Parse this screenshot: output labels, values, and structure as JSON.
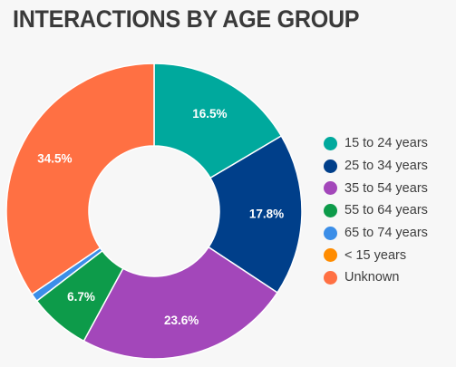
{
  "chart_data": {
    "type": "pie",
    "variant": "donut",
    "title": "INTERACTIONS BY AGE GROUP",
    "legend_position": "right",
    "slices": [
      {
        "name": "15 to 24 years",
        "value": 16.5,
        "label": "16.5%",
        "color": "#00a99d"
      },
      {
        "name": "25 to 34 years",
        "value": 17.8,
        "label": "17.8%",
        "color": "#003f8a"
      },
      {
        "name": "35 to 54 years",
        "value": 23.6,
        "label": "23.6%",
        "color": "#a347ba"
      },
      {
        "name": "55 to 64 years",
        "value": 6.7,
        "label": "6.7%",
        "color": "#0d9b4a"
      },
      {
        "name": "65 to 74 years",
        "value": 0.9,
        "label": "",
        "color": "#3b8ee8"
      },
      {
        "name": "< 15 years",
        "value": 0.0,
        "label": "",
        "color": "#ff8c00"
      },
      {
        "name": "Unknown",
        "value": 34.5,
        "label": "34.5%",
        "color": "#ff7043"
      }
    ]
  }
}
